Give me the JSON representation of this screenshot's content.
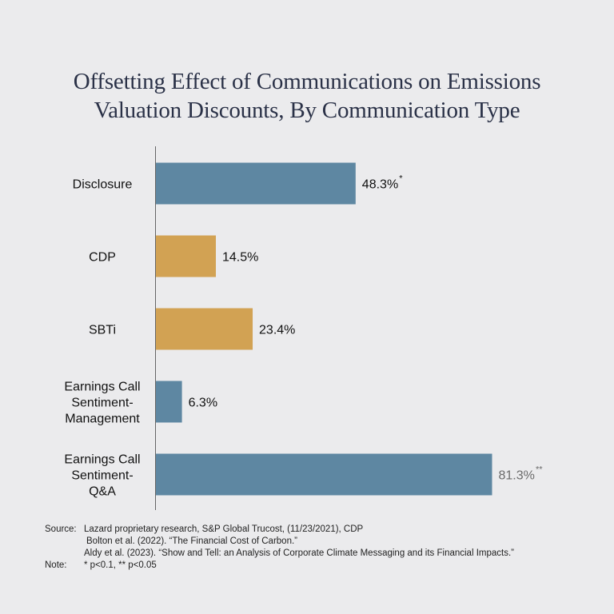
{
  "chart_data": {
    "type": "bar",
    "orientation": "horizontal",
    "title_lines": [
      "Offsetting Effect of Communications on Emissions",
      "Valuation Discounts, By Communication Type"
    ],
    "categories": [
      [
        "Disclosure"
      ],
      [
        "CDP"
      ],
      [
        "SBTi"
      ],
      [
        "Earnings Call",
        "Sentiment-",
        "Management"
      ],
      [
        "Earnings Call",
        "Sentiment-",
        "Q&A"
      ]
    ],
    "values": [
      48.3,
      14.5,
      23.4,
      6.3,
      81.3
    ],
    "value_labels": [
      "48.3%",
      "14.5%",
      "23.4%",
      "6.3%",
      "81.3%"
    ],
    "significance": [
      "*",
      "",
      "",
      "",
      "**"
    ],
    "bar_colors": [
      "#5e87a2",
      "#d2a253",
      "#d2a253",
      "#5e87a2",
      "#5e87a2"
    ],
    "value_label_colors": [
      "#111111",
      "#111111",
      "#111111",
      "#111111",
      "#6b6b6b"
    ],
    "xlim": [
      0,
      100
    ],
    "grid": false,
    "legend": "none"
  },
  "footer": {
    "source_key": "Source:",
    "source_lines": [
      "Lazard proprietary research, S&P Global Trucost, (11/23/2021), CDP",
      "Bolton et al. (2022). “The Financial Cost of Carbon.”",
      "Aldy et al. (2023). “Show and Tell: an Analysis of Corporate Climate Messaging and its Financial Impacts.”"
    ],
    "note_key": "Note:",
    "note_text": "* p<0.1, ** p<0.05"
  }
}
